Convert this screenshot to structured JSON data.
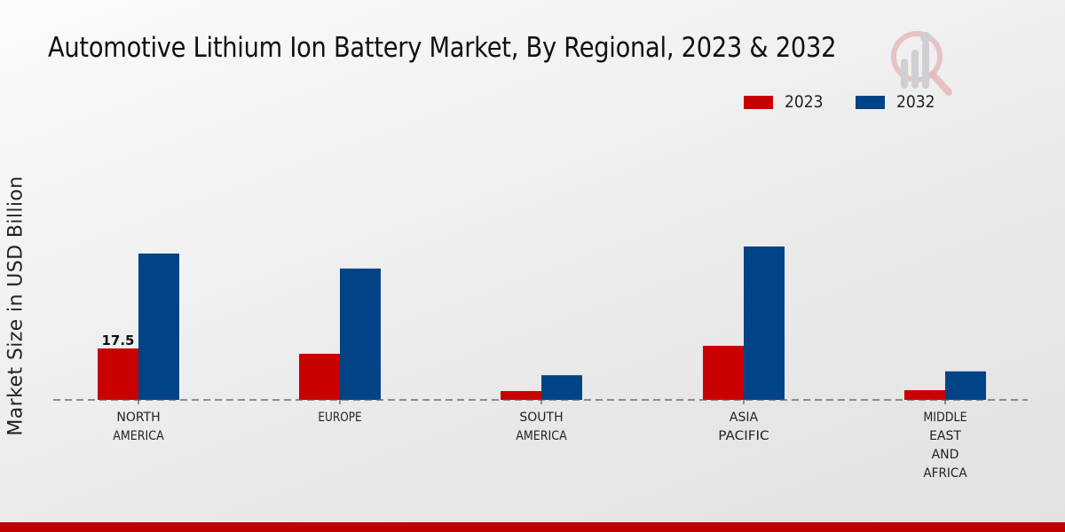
{
  "chart_data": {
    "type": "bar",
    "title": "Automotive Lithium Ion Battery Market, By Regional, 2023 & 2032",
    "xlabel": "",
    "ylabel": "Market Size in USD Billion",
    "categories": [
      [
        "NORTH",
        "AMERICA"
      ],
      [
        "EUROPE"
      ],
      [
        "SOUTH",
        "AMERICA"
      ],
      [
        "ASIA",
        "PACIFIC"
      ],
      [
        "MIDDLE",
        "EAST",
        "AND",
        "AFRICA"
      ]
    ],
    "series": [
      {
        "name": "2023",
        "color": "#c80000",
        "values": [
          17.5,
          15.7,
          3.0,
          18.4,
          3.3
        ]
      },
      {
        "name": "2032",
        "color": "#004386",
        "values": [
          49.8,
          44.7,
          8.4,
          52.2,
          9.7
        ]
      }
    ],
    "data_labels": [
      {
        "series": 0,
        "index": 0,
        "text": "17.5"
      }
    ],
    "ylim": [
      0,
      60
    ],
    "grid": false,
    "legend": "top-right",
    "baseline_style": "dashed"
  },
  "colors": {
    "footer": "#bf0000",
    "text": "#111111"
  }
}
